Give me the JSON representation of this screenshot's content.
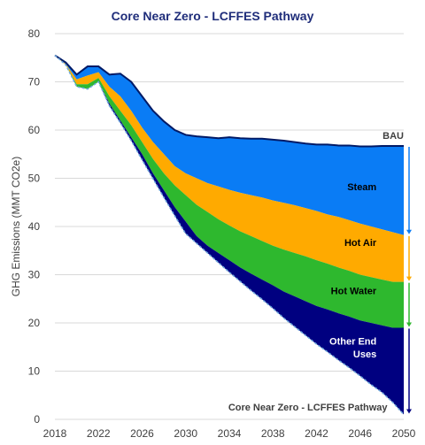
{
  "chart_data": {
    "type": "area",
    "title": "Core Near Zero - LCFFES Pathway",
    "ylabel": "GHG Emissions (MMT CO2e)",
    "xlabel": "",
    "xlim": [
      2018,
      2050
    ],
    "ylim": [
      0,
      80
    ],
    "x_ticks": [
      2018,
      2022,
      2026,
      2030,
      2034,
      2038,
      2042,
      2046,
      2050
    ],
    "y_ticks": [
      0,
      10,
      20,
      30,
      40,
      50,
      60,
      70,
      80
    ],
    "grid": "horizontal",
    "x": [
      2018,
      2019,
      2020,
      2021,
      2022,
      2023,
      2024,
      2025,
      2026,
      2027,
      2028,
      2029,
      2030,
      2031,
      2032,
      2033,
      2034,
      2035,
      2036,
      2037,
      2038,
      2039,
      2040,
      2041,
      2042,
      2043,
      2044,
      2045,
      2046,
      2047,
      2048,
      2049,
      2050
    ],
    "bau": [
      75.5,
      74.0,
      71.5,
      73.2,
      73.2,
      71.5,
      71.7,
      70.0,
      67.0,
      64.0,
      61.8,
      60.0,
      59.0,
      58.7,
      58.5,
      58.3,
      58.5,
      58.3,
      58.2,
      58.2,
      58.0,
      57.8,
      57.5,
      57.2,
      57.0,
      57.0,
      56.8,
      56.8,
      56.6,
      56.6,
      56.7,
      56.7,
      56.7
    ],
    "series": [
      {
        "name": "Other End Uses",
        "color": "#000080",
        "values": [
          75.5,
          73.5,
          69.0,
          68.5,
          70.0,
          65.5,
          62.0,
          58.5,
          55.0,
          51.0,
          47.5,
          44.0,
          41.0,
          38.0,
          36.0,
          34.5,
          33.0,
          31.5,
          30.2,
          29.0,
          27.8,
          26.5,
          25.5,
          24.5,
          23.5,
          22.8,
          22.0,
          21.3,
          20.5,
          20.0,
          19.5,
          19.0,
          19.0
        ]
      },
      {
        "name": "Hot Water",
        "color": "#2eb82e",
        "values": [
          75.5,
          73.5,
          69.5,
          69.5,
          70.8,
          67.0,
          64.0,
          61.0,
          57.5,
          54.0,
          51.0,
          48.5,
          46.5,
          44.5,
          43.0,
          41.5,
          40.2,
          39.0,
          38.0,
          37.0,
          36.0,
          35.2,
          34.5,
          33.8,
          33.0,
          32.3,
          31.5,
          30.8,
          30.0,
          29.5,
          29.0,
          28.5,
          28.5
        ]
      },
      {
        "name": "Hot Air",
        "color": "#ffaa00",
        "values": [
          75.5,
          73.7,
          70.5,
          71.3,
          72.0,
          69.0,
          67.0,
          64.0,
          60.5,
          57.5,
          55.0,
          52.5,
          51.0,
          50.0,
          49.0,
          48.3,
          47.6,
          47.0,
          46.5,
          46.0,
          45.4,
          44.9,
          44.4,
          43.8,
          43.2,
          42.5,
          42.0,
          41.3,
          40.6,
          40.0,
          39.4,
          38.8,
          38.2
        ]
      },
      {
        "name": "Steam",
        "color": "#0a7cf5",
        "values": [
          75.5,
          74.0,
          71.5,
          73.2,
          73.2,
          71.5,
          71.7,
          70.0,
          67.0,
          64.0,
          61.8,
          60.0,
          59.0,
          58.7,
          58.5,
          58.3,
          58.5,
          58.3,
          58.2,
          58.2,
          58.0,
          57.8,
          57.5,
          57.2,
          57.0,
          57.0,
          56.8,
          56.8,
          56.6,
          56.6,
          56.7,
          56.7,
          56.7
        ]
      }
    ],
    "pathway": {
      "name": "Core Near Zero - LCFFES Pathway",
      "values": [
        75.5,
        73.5,
        69.0,
        68.5,
        70.0,
        65.0,
        61.5,
        57.8,
        53.8,
        49.9,
        46.0,
        42.2,
        38.5,
        36.5,
        34.5,
        32.5,
        30.5,
        28.6,
        26.7,
        24.9,
        23.0,
        21.0,
        19.2,
        17.4,
        15.6,
        14.0,
        12.3,
        10.7,
        9.0,
        7.2,
        5.6,
        3.5,
        1.0
      ]
    },
    "annotations": [
      {
        "text": "BAU",
        "color": "#404040"
      },
      {
        "text": "Steam",
        "color": "#000000"
      },
      {
        "text": "Hot Air",
        "color": "#000000"
      },
      {
        "text": "Hot Water",
        "color": "#000000"
      },
      {
        "text": "Other End",
        "color": "#ffffff"
      },
      {
        "text": "Uses",
        "color": "#ffffff"
      },
      {
        "text": "Core Near Zero - LCFFES Pathway",
        "color": "#404040"
      }
    ]
  }
}
